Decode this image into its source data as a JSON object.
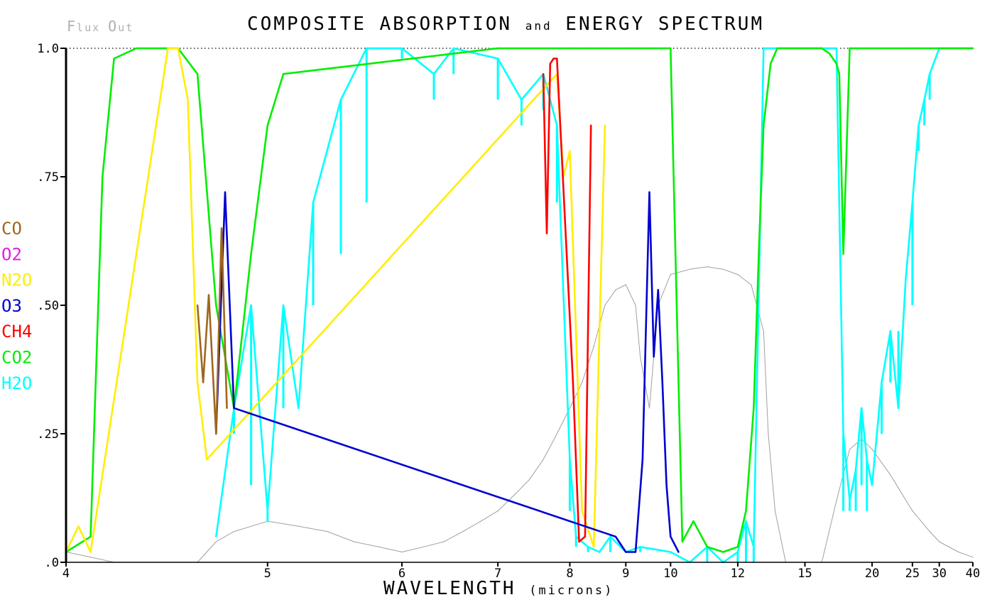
{
  "chart_data": {
    "type": "line",
    "title": "COMPOSITE ABSORPTION and ENERGY SPECTRUM",
    "title_parts": [
      "COMPOSITE ABSORPTION ",
      "and",
      " ENERGY SPECTRUM"
    ],
    "corner_label": "Flux Out",
    "corner_label_parts": [
      "F",
      "lux ",
      "O",
      "ut"
    ],
    "xlabel": "WAVELENGTH (microns)",
    "xlabel_parts": [
      "WAVELENGTH ",
      "(microns)"
    ],
    "ylabel": "",
    "x_scale": "reciprocal",
    "xlim": [
      4,
      40
    ],
    "ylim": [
      0.0,
      1.0
    ],
    "x_ticks": [
      4,
      5,
      6,
      7,
      8,
      9,
      10,
      12,
      15,
      20,
      25,
      30,
      40
    ],
    "x_tick_labels": [
      "4",
      "5",
      "6",
      "7",
      "8",
      "9",
      "10",
      "12",
      "15",
      "20",
      "25",
      "30",
      "40"
    ],
    "y_ticks": [
      0.0,
      0.25,
      0.5,
      0.75,
      1.0
    ],
    "y_tick_labels": [
      ".0",
      ".25",
      ".50",
      ".75",
      "1.0"
    ],
    "reference_line": {
      "y": 1.0,
      "style": "dotted"
    },
    "legend_position": "left",
    "legend": [
      {
        "name": "CO",
        "color": "#a0661e"
      },
      {
        "name": "O2",
        "color": "#e020e0"
      },
      {
        "name": "N2O",
        "color": "#ffee00"
      },
      {
        "name": "O3",
        "color": "#0000d0"
      },
      {
        "name": "CH4",
        "color": "#ff0000"
      },
      {
        "name": "CO2",
        "color": "#00ee00"
      },
      {
        "name": "H2O",
        "color": "#00ffff"
      }
    ],
    "series": [
      {
        "name": "Flux Out",
        "color": "#a0a0a0",
        "x": [
          4,
          4.1,
          4.2,
          4.4,
          4.6,
          4.7,
          4.8,
          4.9,
          5,
          5.2,
          5.4,
          5.6,
          5.8,
          6,
          6.2,
          6.4,
          6.6,
          6.8,
          7,
          7.2,
          7.4,
          7.6,
          7.8,
          8,
          8.2,
          8.4,
          8.6,
          8.8,
          9,
          9.2,
          9.3,
          9.5,
          9.7,
          10,
          10.5,
          11,
          11.5,
          12,
          12.5,
          13,
          13.2,
          13.5,
          14,
          14.5,
          15,
          16,
          17,
          18,
          19,
          20,
          22,
          25,
          28,
          30,
          35,
          40
        ],
        "y": [
          0.02,
          0.01,
          0.0,
          0.0,
          0.0,
          0.04,
          0.06,
          0.07,
          0.08,
          0.07,
          0.06,
          0.04,
          0.03,
          0.02,
          0.03,
          0.04,
          0.06,
          0.08,
          0.1,
          0.13,
          0.16,
          0.2,
          0.25,
          0.3,
          0.35,
          0.42,
          0.5,
          0.53,
          0.54,
          0.5,
          0.4,
          0.3,
          0.5,
          0.56,
          0.57,
          0.575,
          0.57,
          0.56,
          0.54,
          0.45,
          0.25,
          0.1,
          0.0,
          0.0,
          0.0,
          0.0,
          0.12,
          0.22,
          0.24,
          0.22,
          0.17,
          0.1,
          0.06,
          0.04,
          0.02,
          0.01
        ]
      },
      {
        "name": "CO2",
        "color": "#00ee00",
        "x": [
          4,
          4.1,
          4.15,
          4.2,
          4.3,
          4.5,
          4.6,
          4.7,
          4.8,
          4.9,
          5.0,
          5.1,
          7,
          8,
          8.3,
          8.6,
          9,
          9.3,
          9.6,
          10,
          10.3,
          10.6,
          11,
          11.5,
          12,
          12.3,
          12.6,
          12.8,
          13,
          13.3,
          13.6,
          14,
          14.5,
          15,
          16,
          16.5,
          17,
          17.2,
          17.5,
          18,
          20,
          25,
          30,
          40
        ],
        "y": [
          0.02,
          0.05,
          0.75,
          0.98,
          1.0,
          1.0,
          0.95,
          0.5,
          0.3,
          0.6,
          0.85,
          0.95,
          1.0,
          1.0,
          1.0,
          1.0,
          1.0,
          1.0,
          1.0,
          1.0,
          0.04,
          0.08,
          0.03,
          0.02,
          0.03,
          0.1,
          0.3,
          0.6,
          0.85,
          0.97,
          1.0,
          1.0,
          1.0,
          1.0,
          1.0,
          0.99,
          0.97,
          0.95,
          0.6,
          1.0,
          1.0,
          1.0,
          1.0,
          1.0
        ]
      },
      {
        "name": "H2O",
        "color": "#00ffff",
        "x": [
          4.7,
          4.8,
          4.9,
          5.0,
          5.1,
          5.2,
          5.3,
          5.5,
          5.7,
          6,
          6.3,
          6.5,
          7,
          7.3,
          7.6,
          7.8,
          8,
          8.1,
          8.3,
          8.5,
          8.7,
          9,
          9.3,
          10,
          10.5,
          11,
          11.5,
          12,
          12.3,
          12.6,
          13,
          16,
          17,
          17.5,
          18,
          18.5,
          19,
          19.5,
          20,
          21,
          22,
          23,
          24,
          25,
          26,
          27,
          28,
          30,
          40
        ],
        "y": [
          0.05,
          0.3,
          0.5,
          0.1,
          0.5,
          0.3,
          0.7,
          0.9,
          1.0,
          1.0,
          0.95,
          1.0,
          0.98,
          0.9,
          0.95,
          0.85,
          0.2,
          0.05,
          0.03,
          0.02,
          0.05,
          0.02,
          0.03,
          0.02,
          0.0,
          0.03,
          0.0,
          0.02,
          0.08,
          0.03,
          1.0,
          1.0,
          1.0,
          0.25,
          0.12,
          0.18,
          0.3,
          0.2,
          0.15,
          0.35,
          0.45,
          0.3,
          0.55,
          0.7,
          0.85,
          0.9,
          0.95,
          1.0,
          1.0
        ],
        "min_band": [
          0.05,
          0.25,
          0.15,
          0.08,
          0.3,
          0.3,
          0.5,
          0.6,
          0.7,
          0.98,
          0.9,
          0.95,
          0.9,
          0.85,
          0.88,
          0.7,
          0.1,
          0.03,
          0.02,
          0.02,
          0.02,
          0.02,
          0.02,
          0.02,
          0.0,
          0.0,
          0.0,
          0.0,
          0.0,
          0.0,
          1.0,
          1.0,
          1.0,
          0.1,
          0.1,
          0.1,
          0.15,
          0.1,
          0.15,
          0.25,
          0.35,
          0.45,
          0.55,
          0.5,
          0.8,
          0.85,
          0.9,
          1.0,
          1.0
        ]
      },
      {
        "name": "O3",
        "color": "#0000d0",
        "x": [
          4.7,
          4.75,
          4.8,
          8.8,
          9.0,
          9.2,
          9.35,
          9.5,
          9.6,
          9.7,
          9.8,
          9.9,
          10.0,
          10.2
        ],
        "y": [
          0.25,
          0.72,
          0.3,
          0.05,
          0.02,
          0.02,
          0.2,
          0.72,
          0.4,
          0.53,
          0.35,
          0.15,
          0.05,
          0.02
        ]
      },
      {
        "name": "N2O",
        "color": "#ffee00",
        "x": [
          4.0,
          4.05,
          4.1,
          4.45,
          4.5,
          4.55,
          4.6,
          4.65,
          7.8,
          7.9,
          8.0,
          8.2,
          8.4,
          8.5,
          8.6
        ],
        "y": [
          0.02,
          0.07,
          0.02,
          1.0,
          1.0,
          0.9,
          0.35,
          0.2,
          0.95,
          0.75,
          0.8,
          0.1,
          0.03,
          0.45,
          0.85
        ]
      },
      {
        "name": "CH4",
        "color": "#ff0000",
        "x": [
          7.6,
          7.65,
          7.7,
          7.75,
          7.8,
          7.95,
          8.05,
          8.15,
          8.25,
          8.35
        ],
        "y": [
          0.95,
          0.64,
          0.97,
          0.98,
          0.98,
          0.6,
          0.35,
          0.04,
          0.05,
          0.85
        ]
      },
      {
        "name": "CO",
        "color": "#a0661e",
        "x": [
          4.6,
          4.63,
          4.66,
          4.7,
          4.73,
          4.76
        ],
        "y": [
          0.5,
          0.35,
          0.52,
          0.25,
          0.65,
          0.3
        ]
      }
    ]
  }
}
